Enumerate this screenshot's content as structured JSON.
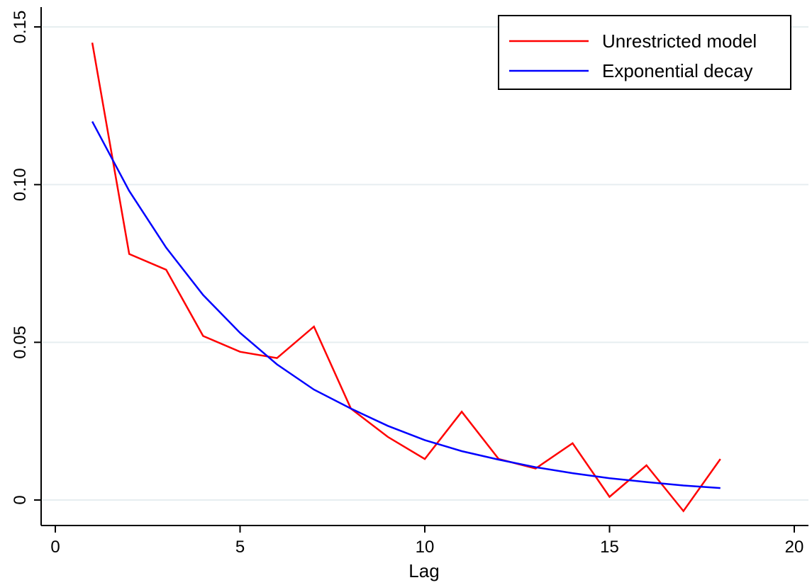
{
  "chart_data": {
    "type": "line",
    "title": "",
    "xlabel": "Lag",
    "ylabel": "",
    "xlim": [
      0,
      20
    ],
    "ylim": [
      -0.0075,
      0.155
    ],
    "xticks": [
      {
        "value": 0,
        "label": "0"
      },
      {
        "value": 5,
        "label": "5"
      },
      {
        "value": 10,
        "label": "10"
      },
      {
        "value": 15,
        "label": "15"
      },
      {
        "value": 20,
        "label": "20"
      }
    ],
    "yticks": [
      {
        "value": 0,
        "label": "0"
      },
      {
        "value": 0.05,
        "label": "0.05"
      },
      {
        "value": 0.1,
        "label": "0.10"
      },
      {
        "value": 0.15,
        "label": "0.15"
      }
    ],
    "grid": "horizontal",
    "legend_position": "top-right",
    "series": [
      {
        "name": "Unrestricted model",
        "color": "#ff0000",
        "x": [
          1,
          2,
          3,
          4,
          5,
          6,
          7,
          8,
          9,
          10,
          11,
          12,
          13,
          14,
          15,
          16,
          17,
          18
        ],
        "y": [
          0.145,
          0.078,
          0.073,
          0.052,
          0.047,
          0.045,
          0.055,
          0.029,
          0.02,
          0.013,
          0.028,
          0.013,
          0.01,
          0.018,
          0.001,
          0.011,
          -0.0035,
          0.013
        ]
      },
      {
        "name": "Exponential decay",
        "color": "#0000ff",
        "x": [
          1,
          2,
          3,
          4,
          5,
          6,
          7,
          8,
          9,
          10,
          11,
          12,
          13,
          14,
          15,
          16,
          17,
          18
        ],
        "y": [
          0.12,
          0.098,
          0.08,
          0.065,
          0.053,
          0.043,
          0.035,
          0.029,
          0.0235,
          0.019,
          0.0155,
          0.0128,
          0.0104,
          0.0085,
          0.0069,
          0.0057,
          0.0046,
          0.0038
        ]
      }
    ]
  }
}
